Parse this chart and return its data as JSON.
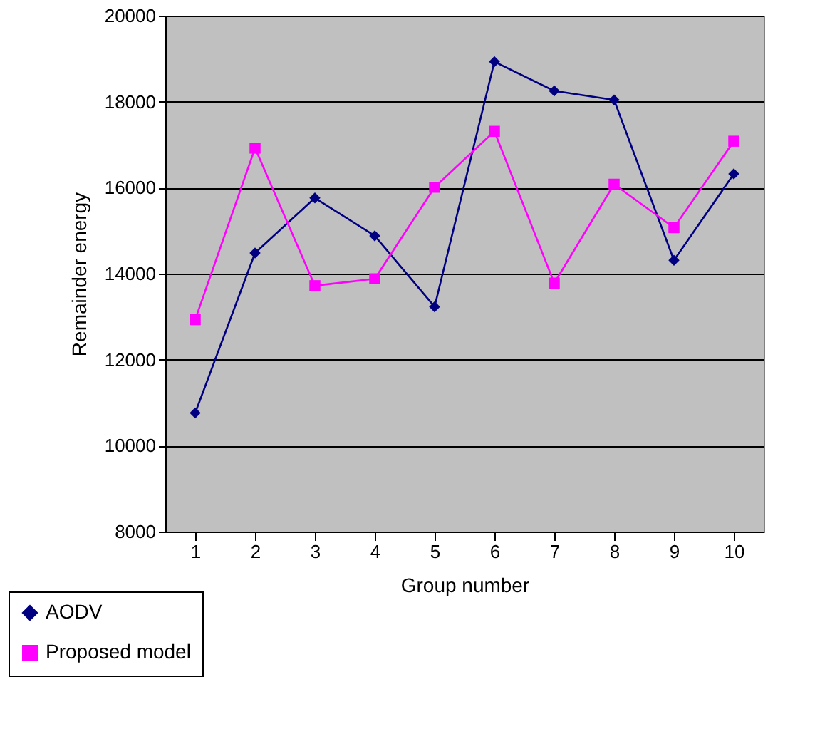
{
  "chart_data": {
    "type": "line",
    "xlabel": "Group number",
    "ylabel": "Remainder energy",
    "categories": [
      "1",
      "2",
      "3",
      "4",
      "5",
      "6",
      "7",
      "8",
      "9",
      "10"
    ],
    "series": [
      {
        "name": "AODV",
        "color": "#000080",
        "marker": "diamond",
        "values": [
          10760,
          14480,
          15760,
          14880,
          13230,
          18930,
          18250,
          18040,
          14310,
          16320
        ]
      },
      {
        "name": "Proposed model",
        "color": "#ff00ff",
        "marker": "square",
        "values": [
          12930,
          16920,
          13720,
          13880,
          16010,
          17310,
          13780,
          16080,
          15070,
          17080
        ]
      }
    ],
    "ylim": [
      8000,
      20000
    ],
    "yticks": [
      8000,
      10000,
      12000,
      14000,
      16000,
      18000,
      20000
    ],
    "grid": "y",
    "legend": "bottom left",
    "line_style": "solid"
  }
}
